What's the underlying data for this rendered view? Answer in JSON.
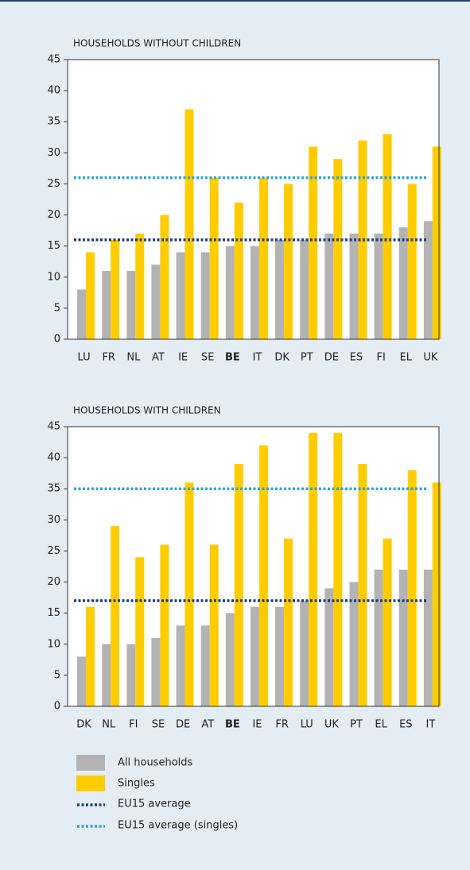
{
  "chart_data": [
    {
      "type": "bar",
      "title": "HOUSEHOLDS WITHOUT CHILDREN",
      "categories": [
        "LU",
        "FR",
        "NL",
        "AT",
        "IE",
        "SE",
        "BE",
        "IT",
        "DK",
        "PT",
        "DE",
        "ES",
        "FI",
        "EL",
        "UK"
      ],
      "bold_categories": [
        6
      ],
      "series": [
        {
          "name": "All households",
          "color": "#b3b3b3",
          "values": [
            8,
            11,
            11,
            12,
            14,
            14,
            15,
            15,
            16,
            16,
            17,
            17,
            17,
            18,
            19
          ]
        },
        {
          "name": "Singles",
          "color": "#ffcc00",
          "values": [
            14,
            16,
            17,
            20,
            37,
            26,
            22,
            26,
            25,
            31,
            29,
            32,
            33,
            25,
            31
          ]
        }
      ],
      "reference_lines": [
        {
          "name": "EU15 average",
          "color": "#1f3f7a",
          "value": 16
        },
        {
          "name": "EU15 average (singles)",
          "color": "#2aa6d9",
          "value": 26
        }
      ],
      "ylim": [
        0,
        45
      ],
      "yticks": [
        0,
        5,
        10,
        15,
        20,
        25,
        30,
        35,
        40,
        45
      ]
    },
    {
      "type": "bar",
      "title": "HOUSEHOLDS WITH CHILDREN",
      "categories": [
        "DK",
        "NL",
        "FI",
        "SE",
        "DE",
        "AT",
        "BE",
        "IE",
        "FR",
        "LU",
        "UK",
        "PT",
        "EL",
        "ES",
        "IT"
      ],
      "bold_categories": [
        6
      ],
      "series": [
        {
          "color": "#b3b3b3",
          "values": [
            8,
            10,
            10,
            11,
            13,
            13,
            15,
            16,
            16,
            17,
            19,
            20,
            22,
            22,
            22
          ]
        },
        {
          "color": "#ffcc00",
          "values": [
            16,
            29,
            24,
            26,
            36,
            26,
            39,
            42,
            27,
            44,
            44,
            39,
            27,
            38,
            36
          ]
        }
      ],
      "reference_lines": [
        {
          "color": "#1f3f7a",
          "value": 17
        },
        {
          "color": "#2aa6d9",
          "value": 35
        }
      ],
      "ylim": [
        0,
        45
      ],
      "yticks": [
        0,
        5,
        10,
        15,
        20,
        25,
        30,
        35,
        40,
        45
      ]
    }
  ]
}
